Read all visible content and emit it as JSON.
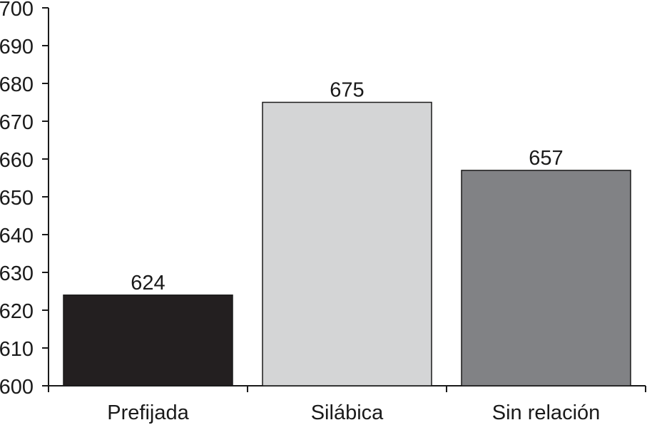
{
  "chart_data": {
    "type": "bar",
    "categories": [
      "Prefijada",
      "Silábica",
      "Sin relación"
    ],
    "values": [
      624,
      675,
      657
    ],
    "data_labels": [
      "624",
      "675",
      "657"
    ],
    "bar_colors": [
      "#231f20",
      "#d4d5d6",
      "#818285"
    ],
    "ylim": [
      600,
      700
    ],
    "yticks": [
      "600",
      "610",
      "620",
      "630",
      "640",
      "650",
      "660",
      "670",
      "680",
      "690",
      "700"
    ],
    "grid": false,
    "legend": "none"
  }
}
